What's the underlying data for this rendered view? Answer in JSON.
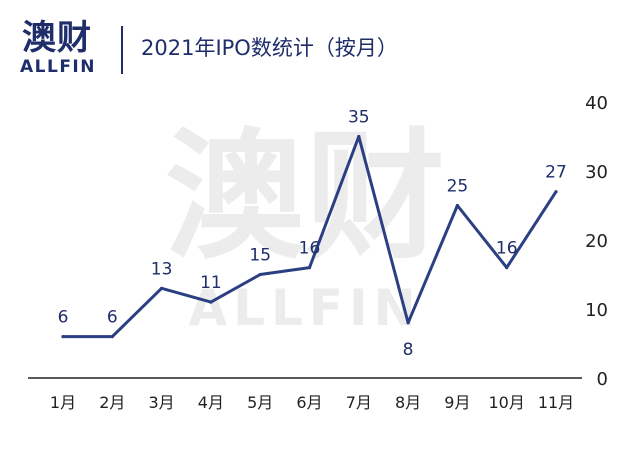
{
  "brand": {
    "name_cn": "澳财",
    "name_en": "ALLFIN"
  },
  "title": "2021年IPO数统计（按月）",
  "watermark": {
    "cn": "澳财",
    "en": "ALLFIN"
  },
  "colors": {
    "line": "#2b3f82",
    "axis": "#222222",
    "text": "#1f2d6b",
    "accent": "#d21f2b",
    "watermark": "#ececec"
  },
  "chart_data": {
    "type": "line",
    "title": "2021年IPO数统计（按月）",
    "categories": [
      "1月",
      "2月",
      "3月",
      "4月",
      "5月",
      "6月",
      "7月",
      "8月",
      "9月",
      "10月",
      "11月"
    ],
    "series": [
      {
        "values": [
          6,
          6,
          13,
          11,
          15,
          16,
          35,
          8,
          25,
          16,
          27
        ]
      }
    ],
    "ylim": [
      0,
      40
    ],
    "yticks": [
      0,
      10,
      20,
      30,
      40
    ],
    "yaxis_side": "right",
    "data_labels": true,
    "grid": false
  }
}
